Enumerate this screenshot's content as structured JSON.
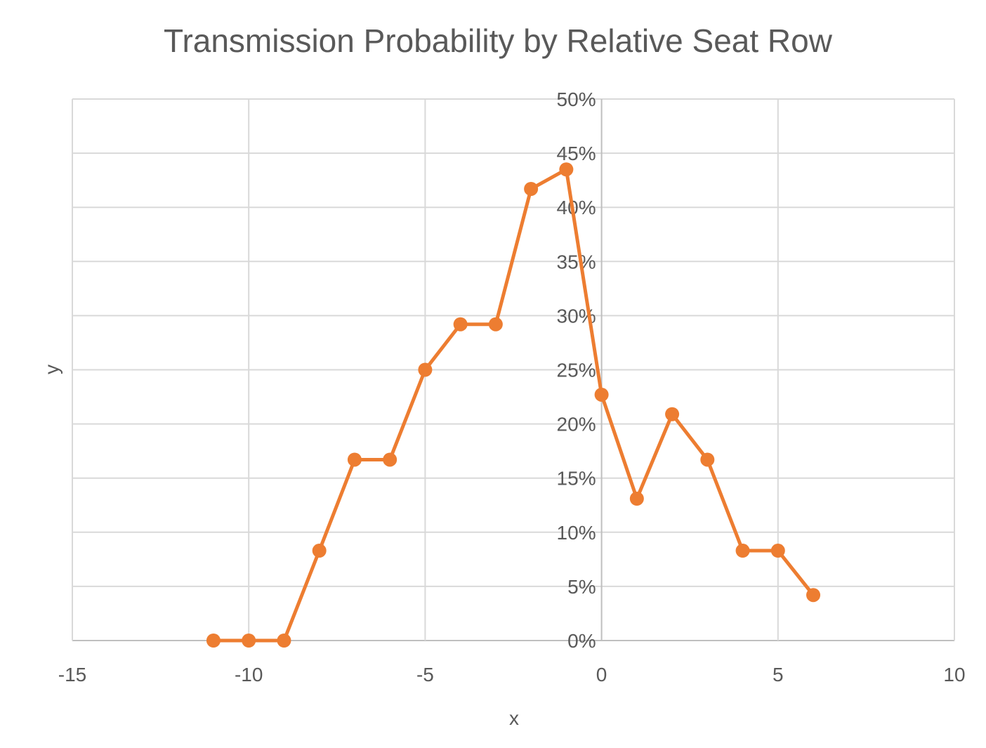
{
  "chart_data": {
    "type": "scatter",
    "title": "Transmission Probability by Relative Seat Row",
    "xlabel": "x",
    "ylabel": "y",
    "xlim": [
      -15,
      10
    ],
    "ylim": [
      0,
      0.5
    ],
    "x_ticks": [
      -15,
      -10,
      -5,
      0,
      5,
      10
    ],
    "x_tick_labels": [
      "-15",
      "-10",
      "-5",
      "0",
      "5",
      "10"
    ],
    "y_ticks": [
      0,
      0.05,
      0.1,
      0.15,
      0.2,
      0.25,
      0.3,
      0.35,
      0.4,
      0.45,
      0.5
    ],
    "y_tick_labels": [
      "0%",
      "5%",
      "10%",
      "15%",
      "20%",
      "25%",
      "30%",
      "35%",
      "40%",
      "45%",
      "50%"
    ],
    "grid": true,
    "legend": "none",
    "series": [
      {
        "color": "#ed7d31",
        "marker": "circle",
        "line": "straight",
        "x": [
          -11,
          -10,
          -9,
          -8,
          -7,
          -6,
          -5,
          -4,
          -3,
          -2,
          -1,
          0,
          1,
          2,
          3,
          4,
          5,
          6
        ],
        "y": [
          0,
          0,
          0,
          0.083,
          0.167,
          0.167,
          0.25,
          0.292,
          0.292,
          0.417,
          0.435,
          0.227,
          0.131,
          0.209,
          0.167,
          0.083,
          0.083,
          0.042
        ]
      }
    ]
  }
}
